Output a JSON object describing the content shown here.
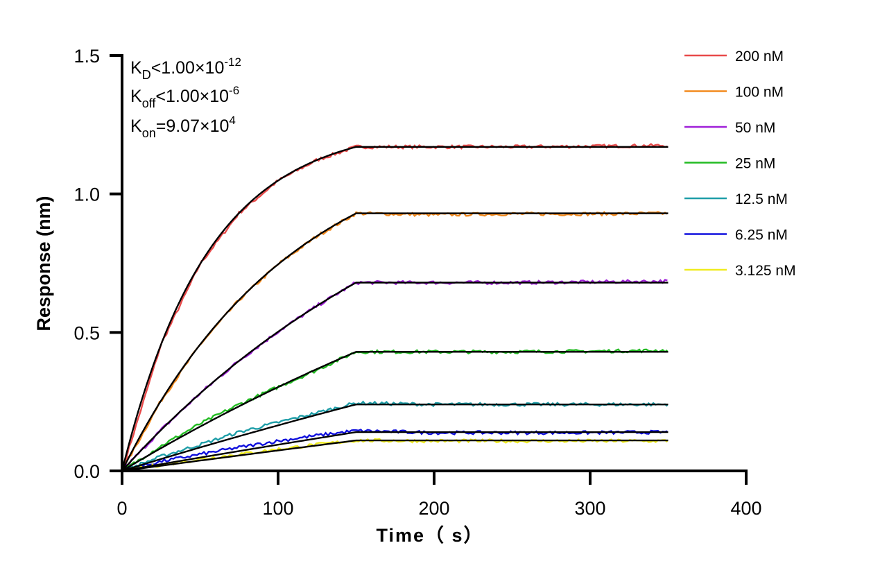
{
  "chart_data": {
    "type": "line",
    "xlabel": "Time（ s）",
    "ylabel": "Response (nm)",
    "xlim": [
      0,
      400
    ],
    "ylim": [
      0,
      1.5
    ],
    "xticks": [
      "0",
      "100",
      "200",
      "300",
      "400"
    ],
    "yticks": [
      "0.0",
      "0.5",
      "1.0",
      "1.5"
    ],
    "grid": false,
    "legend_position": "top-right",
    "annotations": {
      "kd": {
        "sym": "K",
        "sub": "D",
        "rel": "<1.00×10",
        "exp": "-12"
      },
      "koff": {
        "sym": "K",
        "sub": "off",
        "rel": "<1.00×10",
        "exp": "-6"
      },
      "kon": {
        "sym": "K",
        "sub": "on",
        "rel": "=9.07×10",
        "exp": "4"
      }
    },
    "association_end": 150,
    "x": [
      0,
      25,
      50,
      75,
      100,
      125,
      150,
      200,
      250,
      300,
      350
    ],
    "fit_color": "#000000",
    "series": [
      {
        "name": "200 nM",
        "color": "#e84a4a",
        "values": [
          0,
          0.457,
          0.747,
          0.931,
          1.048,
          1.123,
          1.17,
          1.17,
          1.17,
          1.172,
          1.175
        ]
      },
      {
        "name": "100 nM",
        "color": "#f28a1e",
        "values": [
          0,
          0.254,
          0.456,
          0.617,
          0.746,
          0.848,
          0.93,
          0.925,
          0.928,
          0.928,
          0.93
        ]
      },
      {
        "name": "50 nM",
        "color": "#a020d8",
        "values": [
          0,
          0.148,
          0.28,
          0.398,
          0.503,
          0.596,
          0.68,
          0.68,
          0.68,
          0.682,
          0.685
        ]
      },
      {
        "name": "25 nM",
        "color": "#22bb22",
        "values": [
          0,
          0.09,
          0.17,
          0.24,
          0.303,
          0.365,
          0.43,
          0.43,
          0.43,
          0.432,
          0.435
        ]
      },
      {
        "name": "12.5 nM",
        "color": "#1f9ea8",
        "values": [
          0,
          0.052,
          0.095,
          0.14,
          0.175,
          0.21,
          0.245,
          0.24,
          0.24,
          0.24,
          0.24
        ]
      },
      {
        "name": "6.25 nM",
        "color": "#1010dd",
        "values": [
          0,
          0.034,
          0.06,
          0.085,
          0.108,
          0.128,
          0.145,
          0.138,
          0.138,
          0.138,
          0.14
        ]
      },
      {
        "name": "3.125 nM",
        "color": "#f0ec20",
        "values": [
          0,
          0.022,
          0.042,
          0.06,
          0.078,
          0.095,
          0.11,
          0.108,
          0.108,
          0.108,
          0.108
        ]
      }
    ],
    "fit_plateaus": [
      1.17,
      0.93,
      0.68,
      0.43,
      0.24,
      0.14,
      0.11
    ],
    "concentrations_nM": [
      200,
      100,
      50,
      25,
      12.5,
      6.25,
      3.125
    ]
  }
}
